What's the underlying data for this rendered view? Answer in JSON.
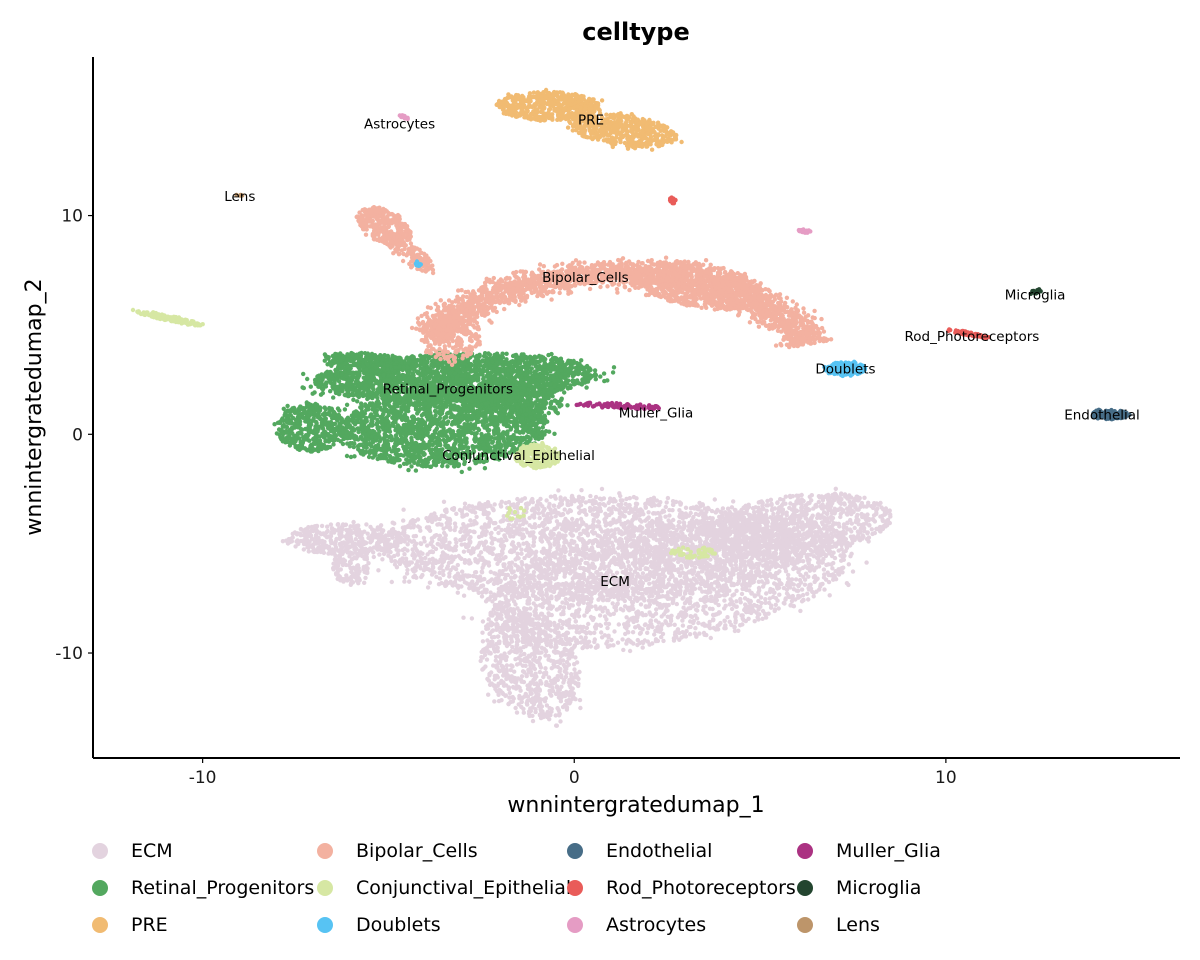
{
  "chart_data": {
    "type": "scatter",
    "title": "celltype",
    "xlabel": "wnnintergratedumap_1",
    "ylabel": "wnnintergratedumap_2",
    "xlim": [
      -12.95,
      16.3
    ],
    "ylim": [
      -14.8,
      17.25
    ],
    "xticks": [
      -10,
      0,
      10
    ],
    "yticks": [
      -10,
      0,
      10
    ],
    "grid": false,
    "legend_position": "bottom",
    "series": [
      {
        "name": "ECM",
        "color": "#E3D3DF",
        "label_at": [
          1.1,
          -6.7
        ],
        "blobs": [
          {
            "cx": 0.5,
            "cy": -5.2,
            "rx": 5.8,
            "ry": 2.4,
            "rot": 0,
            "n": 2600
          },
          {
            "cx": 2.5,
            "cy": -6.8,
            "rx": 5.2,
            "ry": 2.6,
            "rot": 20,
            "n": 2000
          },
          {
            "cx": 6.0,
            "cy": -4.2,
            "rx": 2.6,
            "ry": 1.4,
            "rot": 15,
            "n": 900
          },
          {
            "cx": -1.2,
            "cy": -10.5,
            "rx": 1.3,
            "ry": 2.6,
            "rot": 10,
            "n": 700
          },
          {
            "cx": -6.2,
            "cy": -4.8,
            "rx": 1.6,
            "ry": 0.7,
            "rot": 0,
            "n": 350
          },
          {
            "cx": -6.0,
            "cy": -6.0,
            "rx": 0.5,
            "ry": 0.9,
            "rot": 0,
            "n": 120
          }
        ]
      },
      {
        "name": "Retinal_Progenitors",
        "color": "#53A85F",
        "label_at": [
          -3.4,
          2.1
        ],
        "blobs": [
          {
            "cx": -3.2,
            "cy": 2.6,
            "rx": 3.8,
            "ry": 1.1,
            "rot": 3,
            "n": 2200
          },
          {
            "cx": -3.5,
            "cy": 0.3,
            "rx": 2.8,
            "ry": 1.8,
            "rot": 5,
            "n": 1800
          },
          {
            "cx": -7.1,
            "cy": 0.3,
            "rx": 0.9,
            "ry": 1.1,
            "rot": 0,
            "n": 450
          },
          {
            "cx": -1.8,
            "cy": 1.5,
            "rx": 1.5,
            "ry": 1.0,
            "rot": 0,
            "n": 500
          },
          {
            "cx": -5.5,
            "cy": 3.3,
            "rx": 1.3,
            "ry": 0.4,
            "rot": -8,
            "n": 250
          }
        ]
      },
      {
        "name": "PRE",
        "color": "#F1BB72",
        "label_at": [
          0.45,
          14.4
        ],
        "blobs": [
          {
            "cx": -0.7,
            "cy": 15.0,
            "rx": 1.4,
            "ry": 0.65,
            "rot": 0,
            "n": 500
          },
          {
            "cx": 1.3,
            "cy": 13.9,
            "rx": 1.5,
            "ry": 0.7,
            "rot": -15,
            "n": 500
          }
        ]
      },
      {
        "name": "Bipolar_Cells",
        "color": "#F3B1A0",
        "label_at": [
          0.3,
          7.2
        ],
        "arc": {
          "cx": 1.2,
          "cy": 2.5,
          "r": 4.8,
          "from": 20,
          "to": 155,
          "w": 0.9,
          "n": 2200
        },
        "blobs": [
          {
            "cx": 3.4,
            "cy": 6.8,
            "rx": 1.8,
            "ry": 1.0,
            "rot": -20,
            "n": 700
          },
          {
            "cx": -5.1,
            "cy": 9.5,
            "rx": 0.6,
            "ry": 1.0,
            "rot": 30,
            "n": 300
          },
          {
            "cx": -4.4,
            "cy": 8.2,
            "rx": 0.35,
            "ry": 0.9,
            "rot": 35,
            "n": 120
          },
          {
            "cx": -3.3,
            "cy": 4.5,
            "rx": 0.8,
            "ry": 1.2,
            "rot": 0,
            "n": 250
          }
        ]
      },
      {
        "name": "Conjunctival_Epithelial",
        "color": "#D6E7A3",
        "label_at": [
          -1.5,
          -0.95
        ],
        "blobs": [
          {
            "cx": -1.0,
            "cy": -1.0,
            "rx": 0.6,
            "ry": 0.55,
            "rot": 0,
            "n": 220
          },
          {
            "cx": -10.9,
            "cy": 5.3,
            "rx": 0.95,
            "ry": 0.12,
            "rot": -20,
            "n": 120
          },
          {
            "cx": 3.2,
            "cy": -5.4,
            "rx": 0.6,
            "ry": 0.25,
            "rot": 0,
            "n": 60
          },
          {
            "cx": -1.6,
            "cy": -3.6,
            "rx": 0.3,
            "ry": 0.3,
            "rot": 0,
            "n": 12
          }
        ]
      },
      {
        "name": "Doublets",
        "color": "#57C3F3",
        "label_at": [
          7.3,
          3.0
        ],
        "blobs": [
          {
            "cx": 7.3,
            "cy": 3.0,
            "rx": 0.55,
            "ry": 0.3,
            "rot": 0,
            "n": 200
          },
          {
            "cx": -4.2,
            "cy": 7.8,
            "rx": 0.08,
            "ry": 0.12,
            "rot": 0,
            "n": 8
          }
        ]
      },
      {
        "name": "Endothelial",
        "color": "#476D87",
        "label_at": [
          14.2,
          0.9
        ],
        "blobs": [
          {
            "cx": 14.4,
            "cy": 0.9,
            "rx": 0.5,
            "ry": 0.22,
            "rot": 0,
            "n": 120
          }
        ]
      },
      {
        "name": "Rod_Photoreceptors",
        "color": "#E95C59",
        "label_at": [
          10.7,
          4.5
        ],
        "blobs": [
          {
            "cx": 10.6,
            "cy": 4.6,
            "rx": 0.6,
            "ry": 0.08,
            "rot": -18,
            "n": 80
          },
          {
            "cx": 2.65,
            "cy": 10.7,
            "rx": 0.08,
            "ry": 0.15,
            "rot": 0,
            "n": 14
          }
        ]
      },
      {
        "name": "Astrocytes",
        "color": "#E59CC4",
        "label_at": [
          -4.7,
          14.2
        ],
        "blobs": [
          {
            "cx": 6.2,
            "cy": 9.3,
            "rx": 0.17,
            "ry": 0.1,
            "rot": 0,
            "n": 20
          },
          {
            "cx": -4.6,
            "cy": 14.5,
            "rx": 0.15,
            "ry": 0.06,
            "rot": -30,
            "n": 12
          }
        ]
      },
      {
        "name": "Muller_Glia",
        "color": "#AB3282",
        "label_at": [
          2.2,
          1.0
        ],
        "blobs": [
          {
            "cx": 1.2,
            "cy": 1.3,
            "rx": 1.2,
            "ry": 0.12,
            "rot": -4,
            "n": 90
          }
        ]
      },
      {
        "name": "Microglia",
        "color": "#23452F",
        "label_at": [
          12.4,
          6.4
        ],
        "blobs": [
          {
            "cx": 12.4,
            "cy": 6.5,
            "rx": 0.22,
            "ry": 0.08,
            "rot": 30,
            "n": 20
          }
        ]
      },
      {
        "name": "Lens",
        "color": "#BD956A",
        "label_at": [
          -9.0,
          10.9
        ],
        "blobs": [
          {
            "cx": -9.0,
            "cy": 10.95,
            "rx": 0.12,
            "ry": 0.05,
            "rot": 0,
            "n": 5
          }
        ]
      }
    ]
  },
  "legend": {
    "columns": [
      [
        "ECM",
        "Retinal_Progenitors",
        "PRE"
      ],
      [
        "Bipolar_Cells",
        "Conjunctival_Epithelial",
        "Doublets"
      ],
      [
        "Endothelial",
        "Rod_Photoreceptors",
        "Astrocytes"
      ],
      [
        "Muller_Glia",
        "Microglia",
        "Lens"
      ]
    ]
  }
}
